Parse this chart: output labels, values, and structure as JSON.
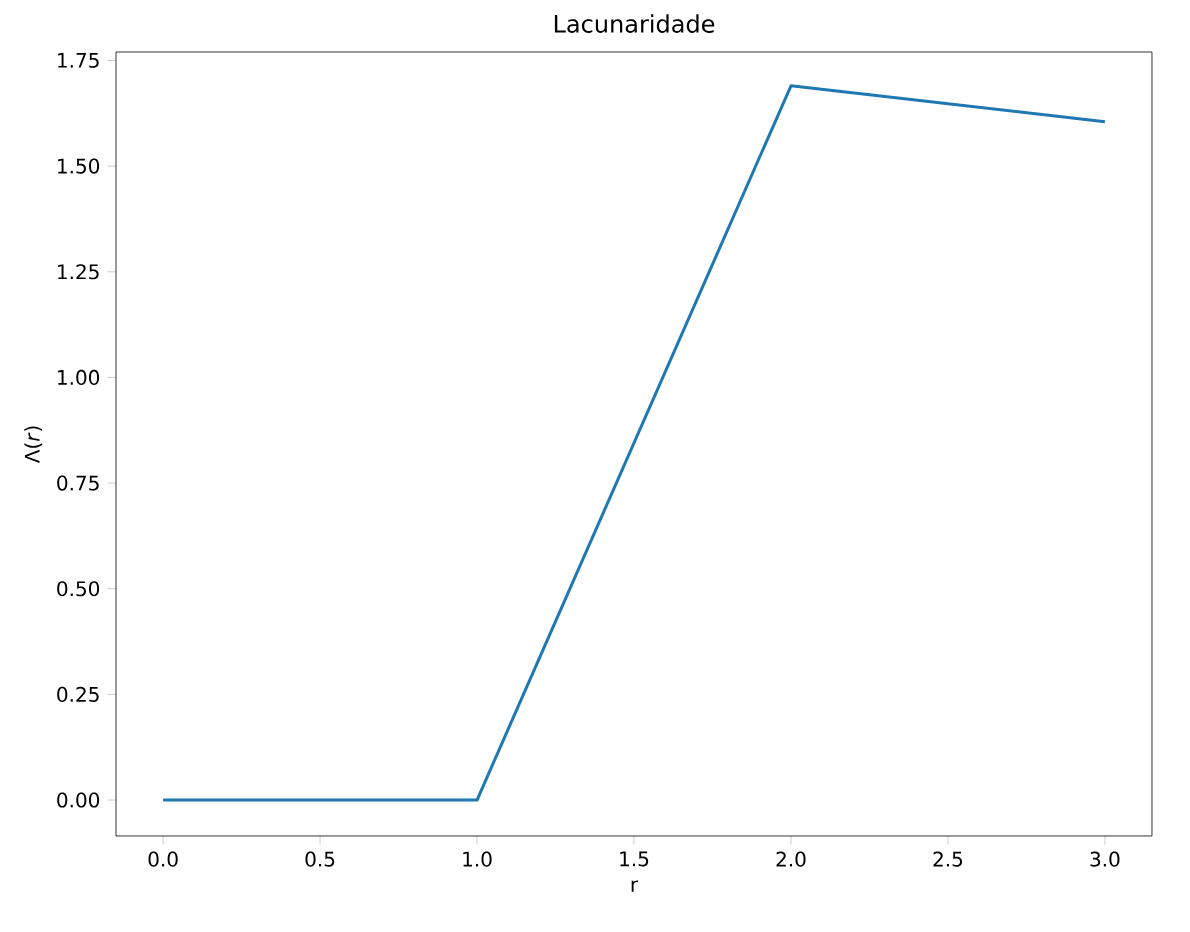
{
  "chart_data": {
    "type": "line",
    "title": "Lacunaridade",
    "xlabel": "r",
    "ylabel": "Λ(*r*)",
    "x": [
      0,
      1,
      2,
      3
    ],
    "series": [
      {
        "color": "#1f77b4",
        "values": [
          0,
          0,
          1.69,
          1.605
        ]
      }
    ],
    "xlim": [
      -0.15,
      3.15
    ],
    "ylim": [
      -0.085,
      1.77
    ],
    "xticks": [
      {
        "value": 0,
        "label": "0.0"
      },
      {
        "value": 0.5,
        "label": "0.5"
      },
      {
        "value": 1,
        "label": "1.0"
      },
      {
        "value": 1.5,
        "label": "1.5"
      },
      {
        "value": 2,
        "label": "2.0"
      },
      {
        "value": 2.5,
        "label": "2.5"
      },
      {
        "value": 3,
        "label": "3.0"
      }
    ],
    "yticks": [
      {
        "value": 0,
        "label": "0.00"
      },
      {
        "value": 0.25,
        "label": "0.25"
      },
      {
        "value": 0.5,
        "label": "0.50"
      },
      {
        "value": 0.75,
        "label": "0.75"
      },
      {
        "value": 1,
        "label": "1.00"
      },
      {
        "value": 1.25,
        "label": "1.25"
      },
      {
        "value": 1.5,
        "label": "1.50"
      },
      {
        "value": 1.75,
        "label": "1.75"
      }
    ],
    "marker": "none",
    "line_style": "solid"
  }
}
